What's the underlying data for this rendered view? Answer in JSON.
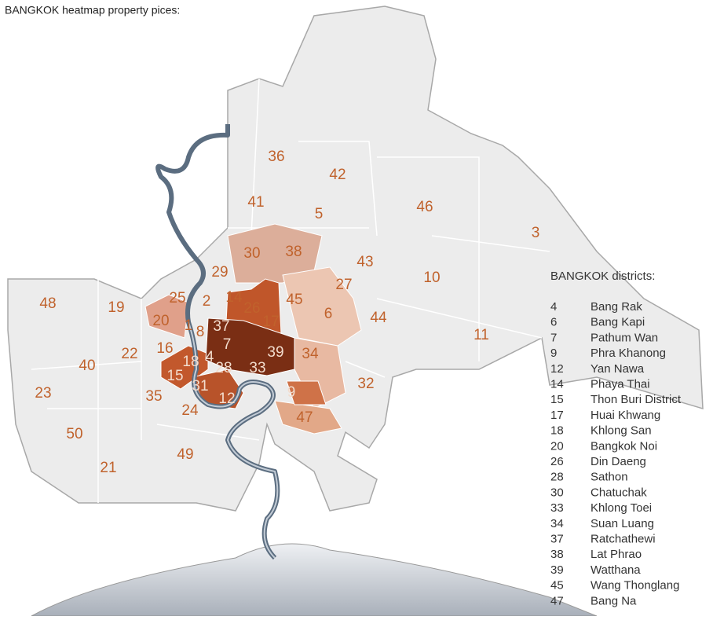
{
  "title": "BANGKOK heatmap property pices:",
  "map_labels": [
    "36",
    "42",
    "41",
    "5",
    "46",
    "3",
    "30",
    "38",
    "43",
    "10",
    "29",
    "27",
    "48",
    "19",
    "25",
    "14",
    "2",
    "26",
    "45",
    "6",
    "44",
    "20",
    "17",
    "1",
    "8",
    "37",
    "11",
    "7",
    "39",
    "34",
    "22",
    "16",
    "18",
    "4",
    "40",
    "28",
    "33",
    "32",
    "15",
    "31",
    "23",
    "35",
    "9",
    "12",
    "24",
    "47",
    "50",
    "49",
    "21"
  ],
  "legend": {
    "title": "BANGKOK districts:",
    "rows": [
      [
        "4",
        "Bang Rak"
      ],
      [
        "6",
        "Bang Kapi"
      ],
      [
        "7",
        "Pathum Wan"
      ],
      [
        "9",
        "Phra Khanong"
      ],
      [
        "12",
        "Yan Nawa"
      ],
      [
        "14",
        "Phaya Thai"
      ],
      [
        "15",
        "Thon Buri District"
      ],
      [
        "17",
        "Huai Khwang"
      ],
      [
        "18",
        "Khlong San"
      ],
      [
        "20",
        "Bangkok Noi"
      ],
      [
        "26",
        "Din Daeng"
      ],
      [
        "28",
        "Sathon"
      ],
      [
        "30",
        "Chatuchak"
      ],
      [
        "33",
        "Khlong Toei"
      ],
      [
        "34",
        "Suan Luang"
      ],
      [
        "37",
        "Ratchathewi"
      ],
      [
        "38",
        "Lat Phrao"
      ],
      [
        "39",
        "Watthana"
      ],
      [
        "45",
        "Wang Thonglang"
      ],
      [
        "47",
        "Bang Na"
      ]
    ]
  }
}
